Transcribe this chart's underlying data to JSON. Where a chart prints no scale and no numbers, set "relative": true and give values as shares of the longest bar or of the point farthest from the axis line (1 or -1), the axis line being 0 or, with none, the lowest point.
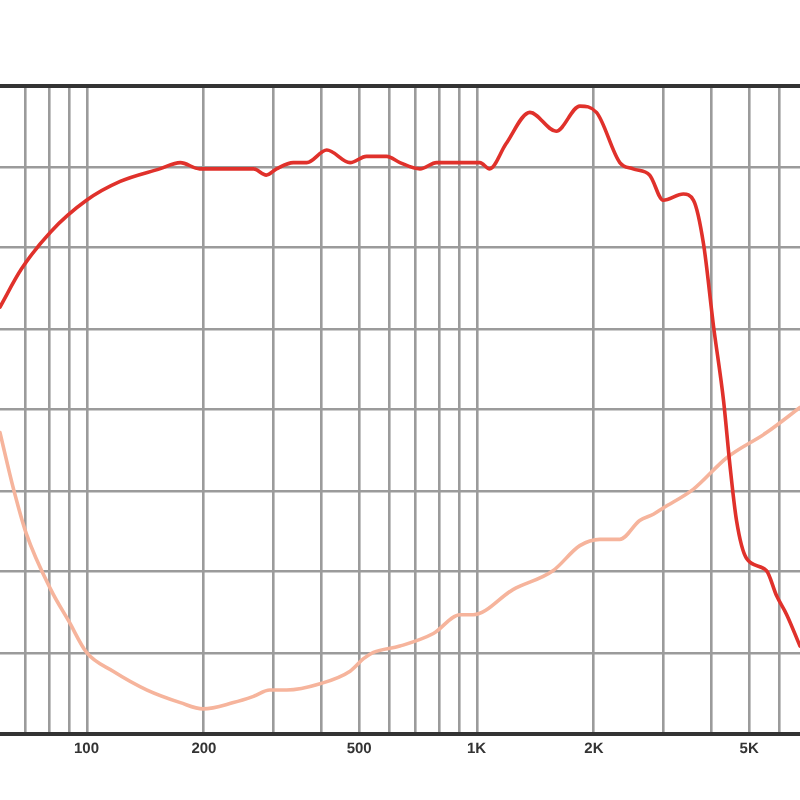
{
  "chart_data": {
    "type": "line",
    "relative": true,
    "log": "x",
    "grid": true,
    "xlim": [
      60,
      6750
    ],
    "xticks": [
      {
        "value": 70,
        "label": null
      },
      {
        "value": 80,
        "label": null
      },
      {
        "value": 90,
        "label": null
      },
      100,
      200,
      {
        "value": 300,
        "label": null
      },
      {
        "value": 400,
        "label": null
      },
      500,
      {
        "value": 600,
        "label": null
      },
      {
        "value": 700,
        "label": null
      },
      {
        "value": 800,
        "label": null
      },
      {
        "value": 900,
        "label": null
      },
      {
        "value": 1000,
        "label": "1K"
      },
      {
        "value": 2000,
        "label": "2K"
      },
      {
        "value": 3000,
        "label": null
      },
      {
        "value": 4000,
        "label": null
      },
      {
        "value": 5000,
        "label": "5K"
      },
      {
        "value": 6000,
        "label": null
      }
    ],
    "series": [
      {
        "color": "#e0312b",
        "x": [
          60,
          68,
          81,
          100,
          122,
          154,
          174,
          195,
          268,
          289,
          307,
          339,
          367,
          413,
          474,
          522,
          588,
          636,
          716,
          790,
          1020,
          1080,
          1190,
          1370,
          1600,
          1840,
          2030,
          2330,
          2520,
          2780,
          3010,
          3390,
          3600,
          3820,
          4050,
          4300,
          4460,
          4640,
          4920,
          5540,
          5880,
          6240,
          6750
        ],
        "values": [
          0.68,
          0.74,
          0.8,
          0.85,
          0.88,
          0.9,
          0.91,
          0.9,
          0.9,
          0.89,
          0.9,
          0.91,
          0.91,
          0.93,
          0.91,
          0.92,
          0.92,
          0.91,
          0.9,
          0.91,
          0.91,
          0.9,
          0.94,
          0.99,
          0.96,
          1.0,
          0.99,
          0.91,
          0.9,
          0.89,
          0.85,
          0.86,
          0.85,
          0.78,
          0.65,
          0.53,
          0.43,
          0.34,
          0.28,
          0.26,
          0.22,
          0.19,
          0.14
        ]
      },
      {
        "color": "#f6b49c",
        "x": [
          60,
          65,
          70,
          81,
          90,
          100,
          117,
          143,
          174,
          199,
          238,
          268,
          295,
          326,
          397,
          474,
          513,
          544,
          636,
          775,
          907,
          981,
          1240,
          1570,
          1840,
          2070,
          2330,
          2620,
          2840,
          3010,
          3600,
          4380,
          5540,
          6750
        ],
        "values": [
          0.48,
          0.39,
          0.32,
          0.23,
          0.18,
          0.13,
          0.1,
          0.07,
          0.05,
          0.04,
          0.05,
          0.06,
          0.07,
          0.07,
          0.08,
          0.1,
          0.12,
          0.13,
          0.14,
          0.16,
          0.19,
          0.19,
          0.23,
          0.26,
          0.3,
          0.31,
          0.31,
          0.34,
          0.35,
          0.36,
          0.39,
          0.44,
          0.48,
          0.52
        ]
      }
    ]
  }
}
